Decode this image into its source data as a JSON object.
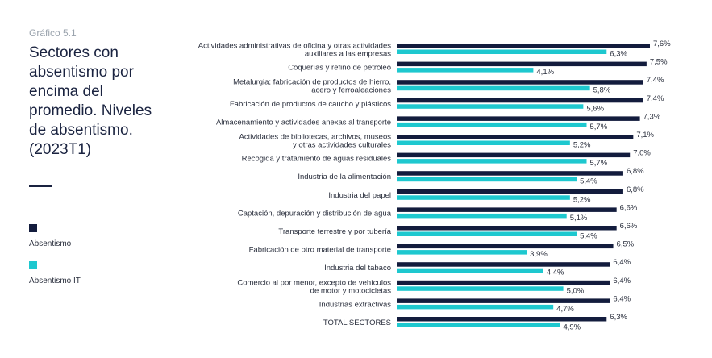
{
  "header": {
    "kicker": "Gráfico 5.1",
    "title": "Sectores con absentismo por encima del promedio. Niveles de absentismo. (2023T1)"
  },
  "legend": {
    "items": [
      {
        "label": "Absentismo",
        "color": "#131c3d"
      },
      {
        "label": "Absentismo IT",
        "color": "#1ec8cf"
      }
    ]
  },
  "chart_data": {
    "type": "bar",
    "orientation": "horizontal",
    "categories": [
      [
        "Actividades administrativas de oficina y otras actividades",
        "auxiliares a las empresas"
      ],
      [
        "Coquerías y refino de petróleo"
      ],
      [
        "Metalurgia; fabricación de productos de hierro,",
        "acero y ferroaleaciones"
      ],
      [
        "Fabricación de productos de caucho y plásticos"
      ],
      [
        "Almacenamiento y actividades anexas al transporte"
      ],
      [
        "Actividades de bibliotecas, archivos, museos",
        "y otras actividades culturales"
      ],
      [
        "Recogida y tratamiento de aguas residuales"
      ],
      [
        "Industria de la alimentación"
      ],
      [
        "Industria del papel"
      ],
      [
        "Captación, depuración y distribución de agua"
      ],
      [
        "Transporte terrestre y por tubería"
      ],
      [
        "Fabricación de otro material de transporte"
      ],
      [
        "Industria del tabaco"
      ],
      [
        "Comercio al por menor, excepto de vehículos",
        "de motor y motocicletas"
      ],
      [
        "Industrias extractivas"
      ],
      [
        "TOTAL SECTORES"
      ]
    ],
    "series": [
      {
        "name": "Absentismo",
        "color": "#131c3d",
        "values": [
          7.6,
          7.5,
          7.4,
          7.4,
          7.3,
          7.1,
          7.0,
          6.8,
          6.8,
          6.6,
          6.6,
          6.5,
          6.4,
          6.4,
          6.4,
          6.3
        ],
        "labels": [
          "7,6%",
          "7,5%",
          "7,4%",
          "7,4%",
          "7,3%",
          "7,1%",
          "7,0%",
          "6,8%",
          "6,8%",
          "6,6%",
          "6,6%",
          "6,5%",
          "6,4%",
          "6,4%",
          "6,4%",
          "6,3%"
        ]
      },
      {
        "name": "Absentismo IT",
        "color": "#1ec8cf",
        "values": [
          6.3,
          4.1,
          5.8,
          5.6,
          5.7,
          5.2,
          5.7,
          5.4,
          5.2,
          5.1,
          5.4,
          3.9,
          4.4,
          5.0,
          4.7,
          4.9
        ],
        "labels": [
          "6,3%",
          "4,1%",
          "5,8%",
          "5,6%",
          "5,7%",
          "5,2%",
          "5,7%",
          "5,4%",
          "5,2%",
          "5,1%",
          "5,4%",
          "3,9%",
          "4,4%",
          "5,0%",
          "4,7%",
          "4,9%"
        ]
      }
    ],
    "xlim": [
      0,
      7.6
    ],
    "grid": false,
    "legend_position": "left"
  }
}
